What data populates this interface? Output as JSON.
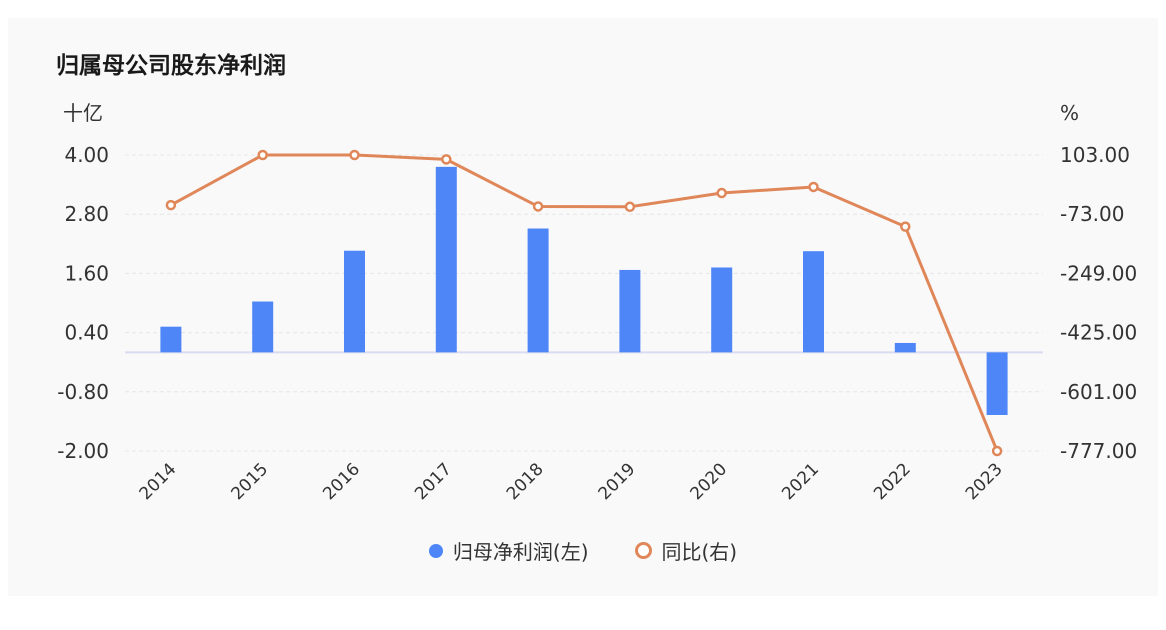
{
  "title": "归属母公司股东净利润",
  "colors": {
    "bar": "#4e86f7",
    "line": "#e0875a",
    "grid": "#e6e6e6",
    "zero": "#d9dcf0"
  },
  "legend": {
    "bar_label": "归母净利润(左)",
    "line_label": "同比(右)"
  },
  "chart_data": {
    "type": "bar",
    "title": "归属母公司股东净利润",
    "categories": [
      "2014",
      "2015",
      "2016",
      "2017",
      "2018",
      "2019",
      "2020",
      "2021",
      "2022",
      "2023"
    ],
    "left_axis": {
      "unit": "十亿",
      "ticks": [
        "4.00",
        "2.80",
        "1.60",
        "0.40",
        "-0.80",
        "-2.00"
      ],
      "ylim": [
        -2.0,
        4.0
      ]
    },
    "right_axis": {
      "unit": "%",
      "ticks": [
        "103.00",
        "-73.00",
        "-249.00",
        "-425.00",
        "-601.00",
        "-777.00"
      ],
      "ylim": [
        -777.0,
        103.0
      ]
    },
    "series": [
      {
        "name": "归母净利润(左)",
        "type": "bar",
        "axis": "left",
        "values": [
          0.52,
          1.03,
          2.06,
          3.76,
          2.51,
          1.67,
          1.72,
          2.05,
          0.19,
          -1.27
        ]
      },
      {
        "name": "同比(右)",
        "type": "line",
        "axis": "right",
        "values": [
          -46,
          103,
          103,
          90,
          -50,
          -51,
          -10,
          8,
          -110,
          -777
        ]
      }
    ],
    "grid": true,
    "legend_position": "bottom"
  }
}
